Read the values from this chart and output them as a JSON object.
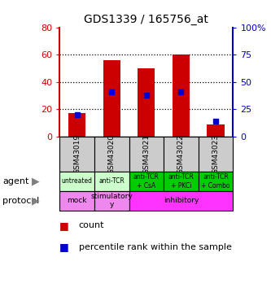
{
  "title": "GDS1339 / 165756_at",
  "samples": [
    "GSM43019",
    "GSM43020",
    "GSM43021",
    "GSM43022",
    "GSM43023"
  ],
  "counts": [
    17,
    56,
    50,
    60,
    9
  ],
  "percentile_ranks": [
    20,
    41,
    38,
    41,
    14
  ],
  "ylim_left": [
    0,
    80
  ],
  "ylim_right": [
    0,
    100
  ],
  "yticks_left": [
    0,
    20,
    40,
    60,
    80
  ],
  "yticks_right": [
    0,
    25,
    50,
    75,
    100
  ],
  "bar_color": "#cc0000",
  "dot_color": "#0000cc",
  "agent_labels": [
    "untreated",
    "anti-TCR",
    "anti-TCR\n+ CsA",
    "anti-TCR\n+ PKCi",
    "anti-TCR\n+ Combo"
  ],
  "agent_colors_light": "#ccffcc",
  "agent_colors_dark": "#00cc00",
  "agent_color_indices": [
    0,
    0,
    1,
    1,
    1
  ],
  "protocol_data": [
    {
      "label": "mock",
      "start": 0,
      "end": 1,
      "color": "#ee88ee"
    },
    {
      "label": "stimulatory\ny",
      "start": 1,
      "end": 2,
      "color": "#ee88ee"
    },
    {
      "label": "inhibitory",
      "start": 2,
      "end": 5,
      "color": "#ff33ff"
    }
  ],
  "bg_color": "#ffffff",
  "sample_bg_color": "#cccccc",
  "grid_color": "black"
}
